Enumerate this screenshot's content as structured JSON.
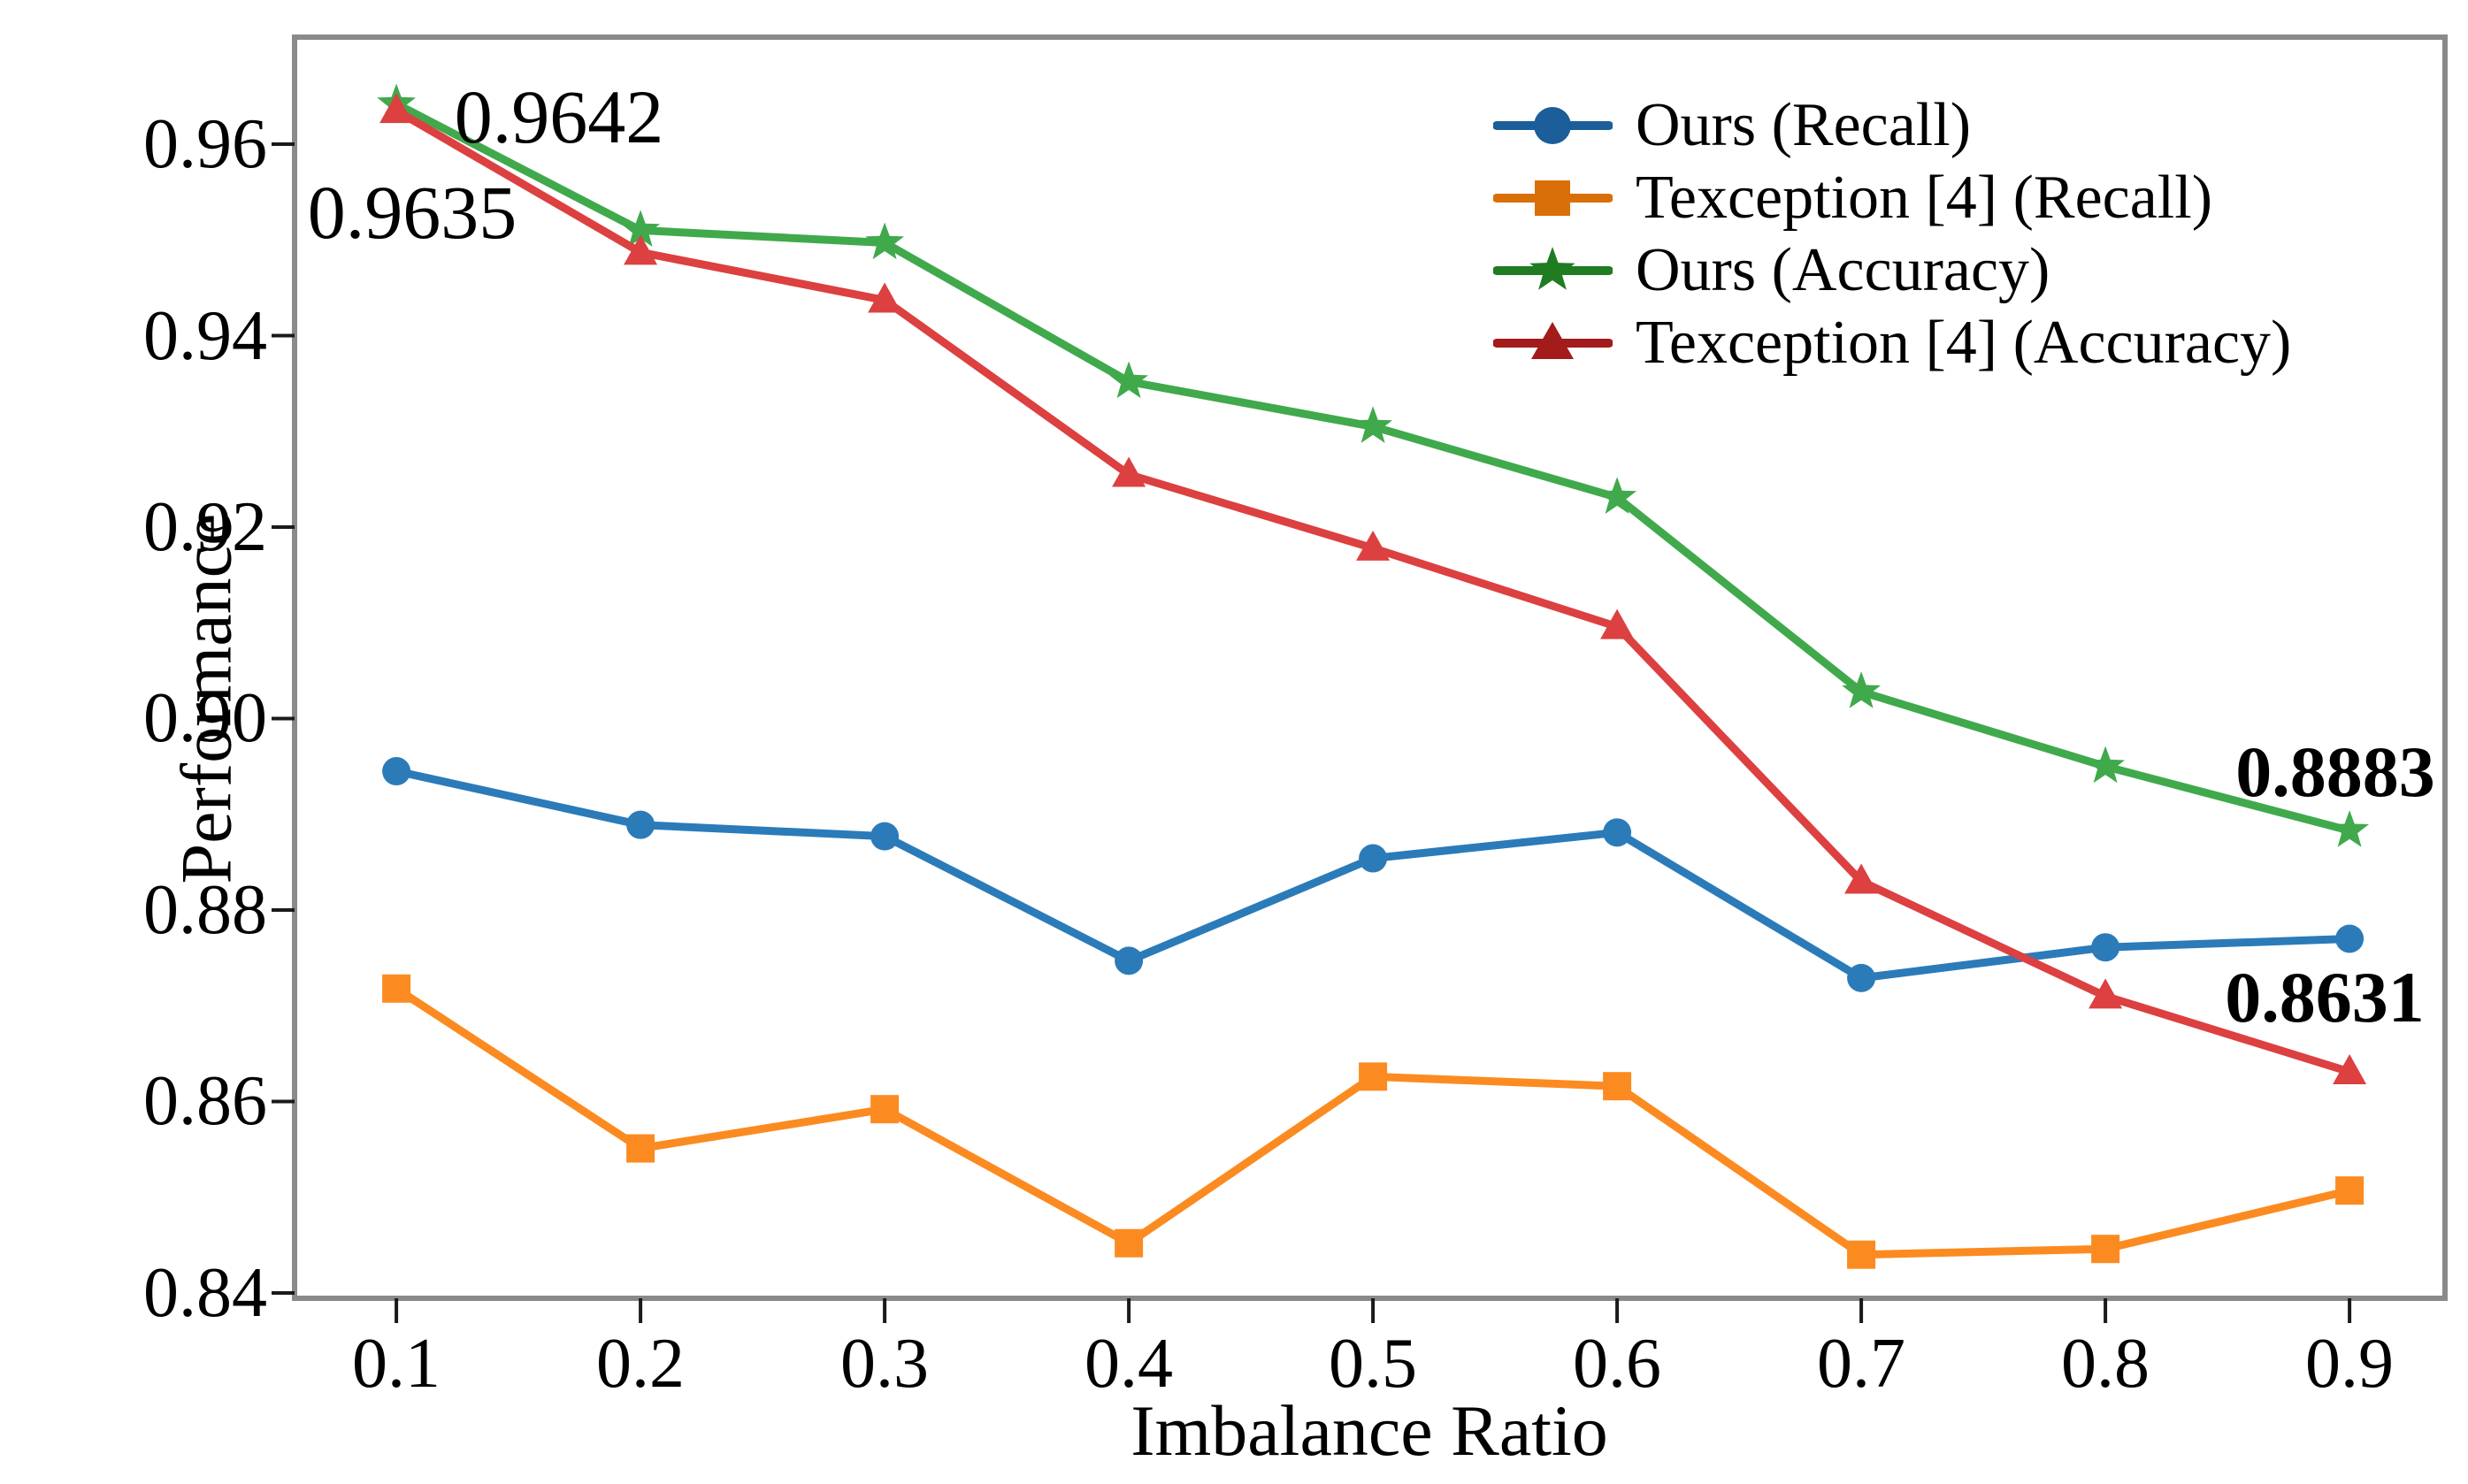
{
  "chart_data": {
    "type": "line",
    "xlabel": "Imbalance Ratio",
    "ylabel": "Performance",
    "x": [
      0.1,
      0.2,
      0.3,
      0.4,
      0.5,
      0.6,
      0.7,
      0.8,
      0.9
    ],
    "xtick_labels": [
      "0.1",
      "0.2",
      "0.3",
      "0.4",
      "0.5",
      "0.6",
      "0.7",
      "0.8",
      "0.9"
    ],
    "ytick_values": [
      0.84,
      0.86,
      0.88,
      0.9,
      0.92,
      0.94,
      0.96
    ],
    "ytick_labels": [
      "0.84",
      "0.86",
      "0.88",
      "0.90",
      "0.92",
      "0.94",
      "0.96"
    ],
    "xlim": [
      0.058,
      0.939
    ],
    "ylim": [
      0.8394,
      0.9712
    ],
    "grid": false,
    "legend_position": "upper right",
    "legend_frame": false,
    "series": [
      {
        "name": "Ours (Recall)",
        "marker": "circle",
        "color": "#2b7bb9",
        "legend_color": "#1b5e99",
        "values": [
          0.8945,
          0.8889,
          0.8877,
          0.8747,
          0.8854,
          0.8881,
          0.8729,
          0.8761,
          0.877
        ]
      },
      {
        "name": "Texception [4] (Recall)",
        "marker": "square",
        "color": "#fb8b21",
        "legend_color": "#d96f08",
        "values": [
          0.8718,
          0.8551,
          0.8592,
          0.8452,
          0.8626,
          0.8616,
          0.844,
          0.8446,
          0.8507
        ]
      },
      {
        "name": "Ours (Accuracy)",
        "marker": "star",
        "color": "#40a94c",
        "legend_color": "#1f7c21",
        "values": [
          0.9642,
          0.951,
          0.9497,
          0.9352,
          0.9305,
          0.9231,
          0.9028,
          0.895,
          0.8883
        ]
      },
      {
        "name": "Texception [4] (Accuracy)",
        "marker": "triangle",
        "color": "#dc4040",
        "legend_color": "#a31b1b",
        "values": [
          0.9635,
          0.9487,
          0.9437,
          0.9255,
          0.9178,
          0.9096,
          0.883,
          0.871,
          0.8631
        ]
      }
    ],
    "annotations": [
      {
        "text": "0.9642",
        "x": 0.1666,
        "y": 0.9629,
        "bold": false
      },
      {
        "text": "0.9635",
        "x": 0.1065,
        "y": 0.9529,
        "bold": false
      },
      {
        "text": "0.8883",
        "x": 0.894,
        "y": 0.8944,
        "bold": true
      },
      {
        "text": "0.8631",
        "x": 0.89,
        "y": 0.8709,
        "bold": true
      }
    ]
  }
}
